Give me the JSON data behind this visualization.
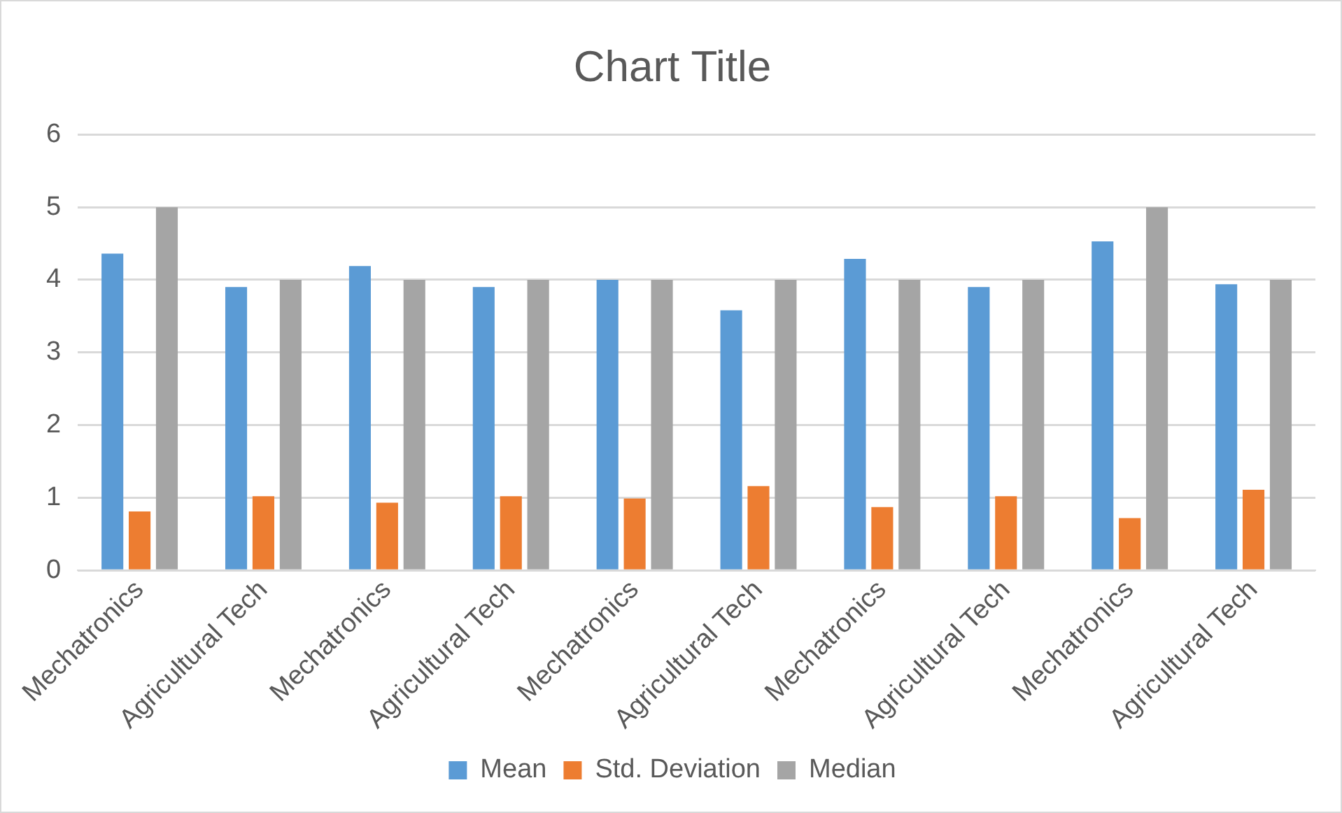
{
  "chart_data": {
    "type": "bar",
    "title": "Chart Title",
    "categories": [
      "Mechatronics",
      "Agricultural Tech",
      "Mechatronics",
      "Agricultural Tech",
      "Mechatronics",
      "Agricultural Tech",
      "Mechatronics",
      "Agricultural Tech",
      "Mechatronics",
      "Agricultural Tech"
    ],
    "series": [
      {
        "name": "Mean",
        "color": "#5b9bd5",
        "values": [
          4.36,
          3.9,
          4.19,
          3.9,
          4.0,
          3.58,
          4.29,
          3.9,
          4.53,
          3.94
        ]
      },
      {
        "name": "Std. Deviation",
        "color": "#ed7d31",
        "values": [
          0.81,
          1.02,
          0.93,
          1.02,
          0.99,
          1.16,
          0.87,
          1.02,
          0.72,
          1.11
        ]
      },
      {
        "name": "Median",
        "color": "#a5a5a5",
        "values": [
          5,
          4,
          4,
          4,
          4,
          4,
          4,
          4,
          5,
          4
        ]
      }
    ],
    "ylim": [
      0,
      6
    ],
    "yticks": [
      0,
      1,
      2,
      3,
      4,
      5,
      6
    ],
    "grid": "y",
    "legend": "bottom"
  }
}
